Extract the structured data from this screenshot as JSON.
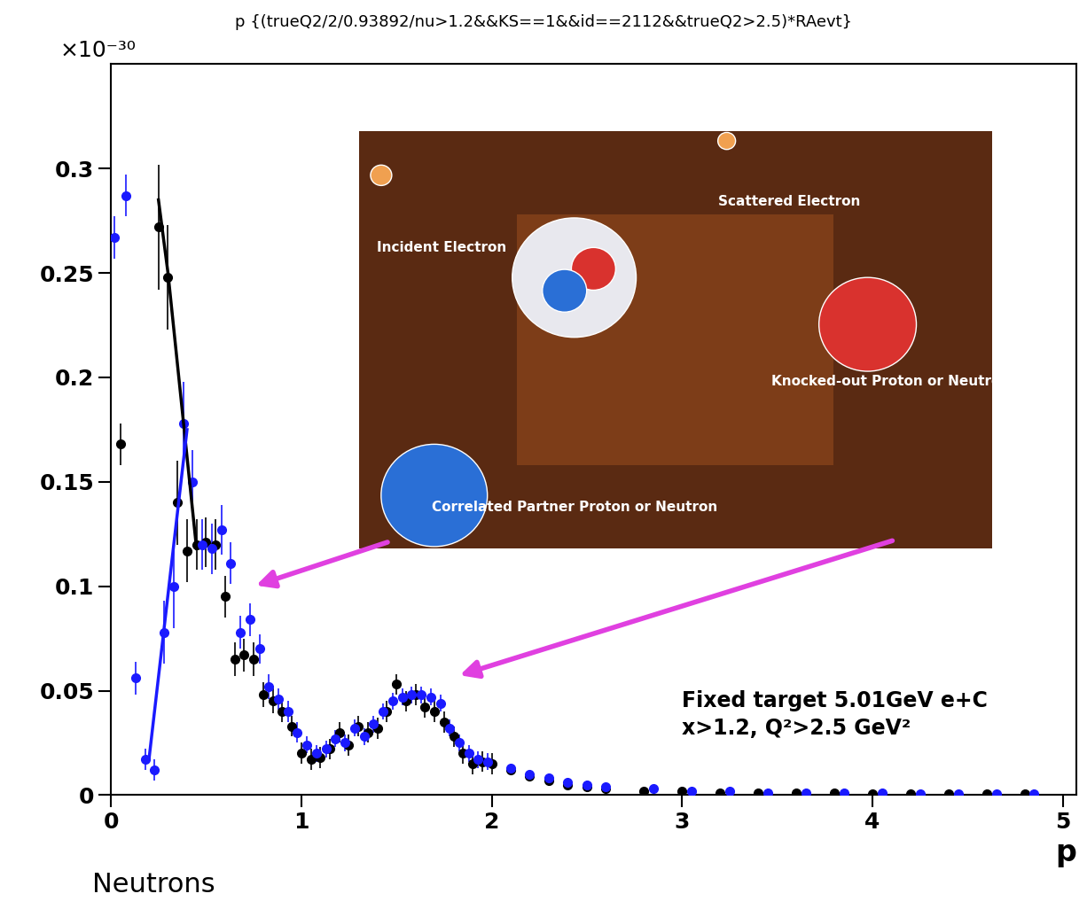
{
  "chart_data": {
    "type": "scatter",
    "title": "p {(trueQ2/2/0.93892/nu>1.2&&KS==1&&id==2112&&trueQ2>2.5)*RAevt}",
    "y_multiplier": "×10⁻³⁰",
    "x_label": "p",
    "x_caption": "Neutrons",
    "annotations": [
      "Fixed target 5.01GeV e+C",
      "x>1.2, Q²>2.5 GeV²"
    ],
    "inset_labels": [
      "Incident Electron",
      "Scattered Electron",
      "Knocked-out Proton or Neutron",
      "Correlated Partner Proton or Neutron"
    ],
    "xlim": [
      0,
      5.07
    ],
    "xticks": [
      0,
      1,
      2,
      3,
      4,
      5
    ],
    "ylim": [
      0,
      0.35
    ],
    "yticks": [
      0,
      0.05,
      0.1,
      0.15,
      0.2,
      0.25,
      0.3
    ],
    "grid": false,
    "series": [
      {
        "type": "scatter",
        "color": "#000000",
        "marker": "circle",
        "x": [
          0.05,
          0.25,
          0.3,
          0.35,
          0.4,
          0.45,
          0.5,
          0.55,
          0.6,
          0.65,
          0.7,
          0.75,
          0.8,
          0.85,
          0.9,
          0.95,
          1.0,
          1.05,
          1.1,
          1.15,
          1.2,
          1.25,
          1.3,
          1.35,
          1.4,
          1.45,
          1.5,
          1.55,
          1.6,
          1.65,
          1.7,
          1.75,
          1.8,
          1.85,
          1.9,
          1.95,
          2.0,
          2.1,
          2.2,
          2.3,
          2.4,
          2.5,
          2.6,
          2.8,
          3.0,
          3.2,
          3.4,
          3.6,
          3.8,
          4.0,
          4.2,
          4.4,
          4.6,
          4.8
        ],
        "values": [
          0.168,
          0.272,
          0.248,
          0.14,
          0.117,
          0.12,
          0.121,
          0.12,
          0.095,
          0.065,
          0.067,
          0.065,
          0.048,
          0.045,
          0.04,
          0.033,
          0.02,
          0.017,
          0.018,
          0.022,
          0.03,
          0.024,
          0.033,
          0.03,
          0.032,
          0.04,
          0.053,
          0.045,
          0.048,
          0.042,
          0.04,
          0.035,
          0.028,
          0.02,
          0.015,
          0.016,
          0.015,
          0.012,
          0.009,
          0.007,
          0.005,
          0.004,
          0.003,
          0.002,
          0.002,
          0.001,
          0.001,
          0.001,
          0.001,
          0.0005,
          0.0005,
          0.0005,
          0.0005,
          0.0005
        ],
        "errors": [
          0.01,
          0.03,
          0.025,
          0.02,
          0.015,
          0.012,
          0.012,
          0.012,
          0.01,
          0.008,
          0.008,
          0.008,
          0.006,
          0.006,
          0.005,
          0.005,
          0.005,
          0.005,
          0.005,
          0.005,
          0.005,
          0.005,
          0.005,
          0.005,
          0.005,
          0.005,
          0.005,
          0.005,
          0.005,
          0.005,
          0.005,
          0.005,
          0.005,
          0.005,
          0.005,
          0.005,
          0.005,
          0.002,
          0.002,
          0.002,
          0.002,
          0.002,
          0.002,
          0.002,
          0.002,
          0.002,
          0.002,
          0.002,
          0.002,
          0.002,
          0.002,
          0.002,
          0.002,
          0.002
        ]
      },
      {
        "type": "scatter",
        "color": "#1a1aff",
        "marker": "circle",
        "x": [
          0.02,
          0.08,
          0.13,
          0.18,
          0.23,
          0.28,
          0.33,
          0.38,
          0.43,
          0.48,
          0.53,
          0.58,
          0.63,
          0.68,
          0.73,
          0.78,
          0.83,
          0.88,
          0.93,
          0.98,
          1.03,
          1.08,
          1.13,
          1.18,
          1.23,
          1.28,
          1.33,
          1.38,
          1.43,
          1.48,
          1.53,
          1.58,
          1.63,
          1.68,
          1.73,
          1.78,
          1.83,
          1.88,
          1.93,
          1.98,
          2.1,
          2.2,
          2.3,
          2.4,
          2.5,
          2.6,
          2.85,
          3.05,
          3.25,
          3.45,
          3.65,
          3.85,
          4.05,
          4.25,
          4.45,
          4.65,
          4.85
        ],
        "values": [
          0.267,
          0.287,
          0.056,
          0.017,
          0.012,
          0.078,
          0.1,
          0.178,
          0.15,
          0.12,
          0.118,
          0.127,
          0.111,
          0.078,
          0.084,
          0.07,
          0.052,
          0.046,
          0.04,
          0.03,
          0.024,
          0.02,
          0.022,
          0.027,
          0.025,
          0.032,
          0.028,
          0.034,
          0.04,
          0.045,
          0.047,
          0.048,
          0.048,
          0.047,
          0.044,
          0.032,
          0.025,
          0.02,
          0.017,
          0.016,
          0.013,
          0.01,
          0.008,
          0.006,
          0.005,
          0.004,
          0.003,
          0.002,
          0.002,
          0.001,
          0.001,
          0.001,
          0.001,
          0.0005,
          0.0005,
          0.0005,
          0.0005
        ],
        "errors": [
          0.01,
          0.01,
          0.008,
          0.005,
          0.005,
          0.015,
          0.02,
          0.02,
          0.015,
          0.012,
          0.012,
          0.012,
          0.01,
          0.008,
          0.008,
          0.007,
          0.006,
          0.005,
          0.005,
          0.005,
          0.004,
          0.004,
          0.004,
          0.004,
          0.004,
          0.004,
          0.004,
          0.004,
          0.004,
          0.004,
          0.004,
          0.004,
          0.004,
          0.004,
          0.004,
          0.004,
          0.004,
          0.004,
          0.004,
          0.004,
          0.002,
          0.002,
          0.002,
          0.002,
          0.002,
          0.002,
          0.002,
          0.002,
          0.002,
          0.002,
          0.002,
          0.002,
          0.002,
          0.002,
          0.002,
          0.002,
          0.002
        ]
      },
      {
        "type": "line",
        "color": "#000000",
        "x": [
          0.25,
          0.3,
          0.45
        ],
        "values": [
          0.285,
          0.25,
          0.118
        ]
      },
      {
        "type": "line",
        "color": "#1a1aff",
        "x": [
          0.2,
          0.4
        ],
        "values": [
          0.017,
          0.175
        ]
      }
    ]
  }
}
